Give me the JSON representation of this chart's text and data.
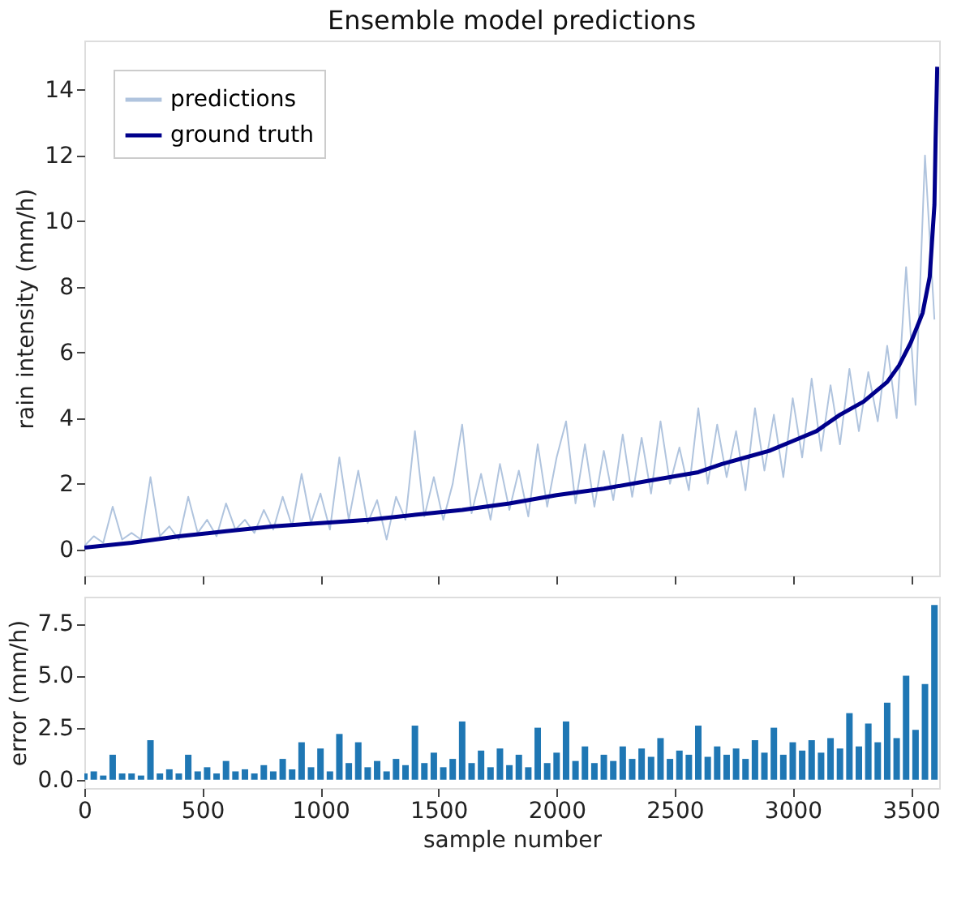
{
  "chart_data": [
    {
      "type": "line",
      "title": "Ensemble model predictions",
      "ylabel": "rain intensity (mm/h)",
      "xlim": [
        0,
        3620
      ],
      "xticks": [
        0,
        500,
        1000,
        1500,
        2000,
        2500,
        3000,
        3500
      ],
      "ylim": [
        -0.8,
        15.5
      ],
      "yticks": [
        0,
        2,
        4,
        6,
        8,
        10,
        12,
        14
      ],
      "tick_labels": "y",
      "grid": false,
      "legend": "top left",
      "x": [
        0,
        40,
        80,
        120,
        160,
        200,
        240,
        280,
        320,
        360,
        400,
        440,
        480,
        520,
        560,
        600,
        640,
        680,
        720,
        760,
        800,
        840,
        880,
        920,
        960,
        1000,
        1040,
        1080,
        1120,
        1160,
        1200,
        1240,
        1280,
        1320,
        1360,
        1400,
        1440,
        1480,
        1520,
        1560,
        1600,
        1640,
        1680,
        1720,
        1760,
        1800,
        1840,
        1880,
        1920,
        1960,
        2000,
        2040,
        2080,
        2120,
        2160,
        2200,
        2240,
        2280,
        2320,
        2360,
        2400,
        2440,
        2480,
        2520,
        2560,
        2600,
        2640,
        2680,
        2720,
        2760,
        2800,
        2840,
        2880,
        2920,
        2960,
        3000,
        3040,
        3080,
        3120,
        3160,
        3200,
        3240,
        3280,
        3320,
        3360,
        3400,
        3440,
        3480,
        3520,
        3560,
        3600
      ],
      "series": [
        {
          "name": "predictions",
          "color": "#b0c4de",
          "values": [
            0.1,
            0.4,
            0.2,
            1.3,
            0.3,
            0.5,
            0.3,
            2.2,
            0.4,
            0.7,
            0.3,
            1.6,
            0.5,
            0.9,
            0.4,
            1.4,
            0.6,
            0.9,
            0.5,
            1.2,
            0.6,
            1.6,
            0.7,
            2.3,
            0.8,
            1.7,
            0.6,
            2.8,
            0.9,
            2.4,
            0.8,
            1.5,
            0.3,
            1.6,
            0.9,
            3.6,
            1.0,
            2.2,
            0.9,
            2.0,
            3.8,
            1.1,
            2.3,
            0.9,
            2.6,
            1.2,
            2.4,
            1.0,
            3.2,
            1.3,
            2.8,
            3.9,
            1.4,
            3.2,
            1.3,
            3.0,
            1.5,
            3.5,
            1.6,
            3.4,
            1.7,
            3.9,
            2.0,
            3.1,
            1.8,
            4.3,
            2.0,
            3.8,
            2.2,
            3.6,
            1.8,
            4.3,
            2.4,
            4.1,
            2.2,
            4.6,
            2.8,
            5.2,
            3.0,
            5.0,
            3.2,
            5.5,
            3.6,
            5.4,
            3.9,
            6.2,
            4.0,
            8.6,
            4.4,
            12.0,
            7.0
          ]
        },
        {
          "name": "ground truth",
          "color": "#00008b",
          "x": [
            0,
            200,
            400,
            600,
            800,
            1000,
            1200,
            1400,
            1600,
            1800,
            2000,
            2200,
            2400,
            2600,
            2700,
            2800,
            2900,
            3000,
            3100,
            3200,
            3300,
            3400,
            3450,
            3500,
            3550,
            3580,
            3600,
            3605,
            3612
          ],
          "values": [
            0.05,
            0.2,
            0.4,
            0.55,
            0.7,
            0.8,
            0.9,
            1.05,
            1.2,
            1.4,
            1.65,
            1.85,
            2.1,
            2.35,
            2.6,
            2.8,
            3.0,
            3.3,
            3.6,
            4.1,
            4.5,
            5.1,
            5.6,
            6.3,
            7.2,
            8.3,
            10.5,
            12.5,
            14.7
          ]
        }
      ]
    },
    {
      "type": "bar",
      "xlabel": "sample number",
      "ylabel": "error (mm/h)",
      "xlim": [
        0,
        3620
      ],
      "xticks": [
        0,
        500,
        1000,
        1500,
        2000,
        2500,
        3000,
        3500
      ],
      "ylim": [
        -0.4,
        8.8
      ],
      "yticks": [
        {
          "value": 0,
          "label": "0.0"
        },
        {
          "value": 2.5,
          "label": "2.5"
        },
        {
          "value": 5,
          "label": "5.0"
        },
        {
          "value": 7.5,
          "label": "7.5"
        }
      ],
      "grid": false,
      "x": [
        0,
        40,
        80,
        120,
        160,
        200,
        240,
        280,
        320,
        360,
        400,
        440,
        480,
        520,
        560,
        600,
        640,
        680,
        720,
        760,
        800,
        840,
        880,
        920,
        960,
        1000,
        1040,
        1080,
        1120,
        1160,
        1200,
        1240,
        1280,
        1320,
        1360,
        1400,
        1440,
        1480,
        1520,
        1560,
        1600,
        1640,
        1680,
        1720,
        1760,
        1800,
        1840,
        1880,
        1920,
        1960,
        2000,
        2040,
        2080,
        2120,
        2160,
        2200,
        2240,
        2280,
        2320,
        2360,
        2400,
        2440,
        2480,
        2520,
        2560,
        2600,
        2640,
        2680,
        2720,
        2760,
        2800,
        2840,
        2880,
        2920,
        2960,
        3000,
        3040,
        3080,
        3120,
        3160,
        3200,
        3240,
        3280,
        3320,
        3360,
        3400,
        3440,
        3480,
        3520,
        3560,
        3600
      ],
      "series": [
        {
          "color": "#1f77b4",
          "values": [
            0.3,
            0.4,
            0.2,
            1.2,
            0.3,
            0.3,
            0.2,
            1.9,
            0.3,
            0.5,
            0.3,
            1.2,
            0.4,
            0.6,
            0.3,
            0.9,
            0.4,
            0.5,
            0.3,
            0.7,
            0.4,
            1.0,
            0.5,
            1.8,
            0.6,
            1.5,
            0.4,
            2.2,
            0.8,
            1.8,
            0.6,
            0.9,
            0.4,
            1.0,
            0.7,
            2.6,
            0.8,
            1.3,
            0.6,
            1.0,
            2.8,
            0.8,
            1.4,
            0.6,
            1.5,
            0.7,
            1.2,
            0.6,
            2.5,
            0.8,
            1.3,
            2.8,
            0.9,
            1.6,
            0.8,
            1.2,
            0.9,
            1.6,
            1.0,
            1.5,
            1.1,
            2.0,
            1.0,
            1.4,
            1.2,
            2.6,
            1.1,
            1.6,
            1.2,
            1.5,
            1.0,
            1.9,
            1.3,
            2.5,
            1.2,
            1.8,
            1.4,
            1.9,
            1.3,
            2.0,
            1.5,
            3.2,
            1.6,
            2.7,
            1.8,
            3.7,
            2.0,
            5.0,
            2.4,
            4.6,
            8.4
          ]
        }
      ]
    }
  ]
}
